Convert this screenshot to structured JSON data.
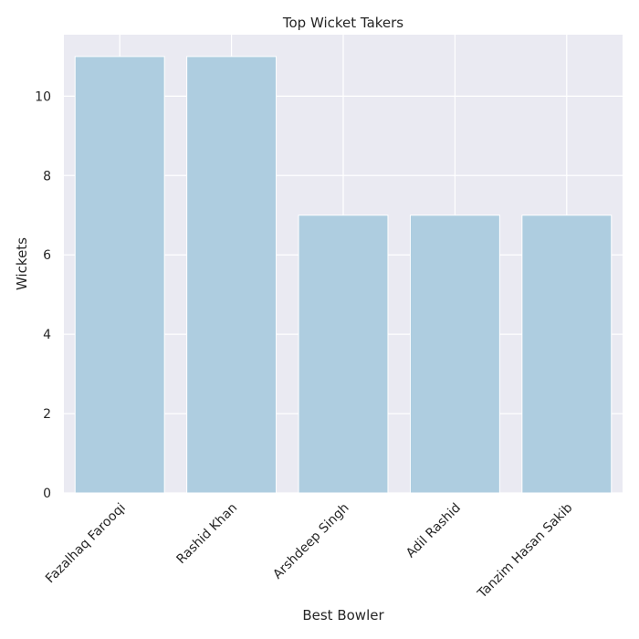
{
  "chart_data": {
    "type": "bar",
    "title": "Top Wicket Takers",
    "xlabel": "Best Bowler",
    "ylabel": "Wickets",
    "categories": [
      "Fazalhaq Farooqi",
      "Rashid Khan",
      "Arshdeep Singh",
      "Adil Rashid",
      "Tanzim Hasan Sakib"
    ],
    "values": [
      11,
      11,
      7,
      7,
      7
    ],
    "ylim": [
      0,
      11.55
    ],
    "yticks": [
      0,
      2,
      4,
      6,
      8,
      10
    ],
    "grid": true,
    "colors": {
      "bar": "#aecde0",
      "background": "#eaeaf2",
      "grid": "#ffffff",
      "text": "#262626"
    }
  }
}
